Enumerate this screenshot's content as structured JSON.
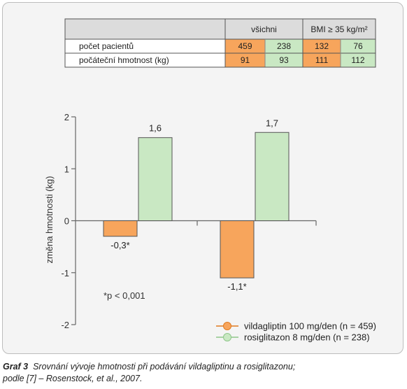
{
  "colors": {
    "orange": "#f7a55c",
    "green": "#c9e8c3",
    "green_dark": "#8fc78a",
    "orange_dark": "#e07a1f",
    "table_header": "#dcdcdc",
    "panel": "#f4f4f4"
  },
  "table": {
    "headers": [
      "všichni",
      "BMI ≥ 35 kg/m²"
    ],
    "rows": [
      {
        "label": "počet pacientů",
        "values": [
          "459",
          "238",
          "132",
          "76"
        ]
      },
      {
        "label": "počáteční hmotnost (kg)",
        "values": [
          "91",
          "93",
          "111",
          "112"
        ]
      }
    ]
  },
  "chart_data": {
    "type": "bar",
    "ylabel": "změna hmotnosti (kg)",
    "ylim": [
      -2,
      2
    ],
    "yticks": [
      "2",
      "1",
      "0",
      "-1",
      "-2"
    ],
    "groups": [
      "všichni",
      "BMI ≥ 35 kg/m²"
    ],
    "series": [
      {
        "name": "vildagliptin 100 mg/den (n = 459)",
        "values": [
          -0.3,
          -1.1
        ],
        "labels": [
          "-0,3*",
          "-1,1*"
        ],
        "color": "#f7a55c"
      },
      {
        "name": "rosiglitazon 8 mg/den (n = 238)",
        "values": [
          1.6,
          1.7
        ],
        "labels": [
          "1,6",
          "1,7"
        ],
        "color": "#c9e8c3"
      }
    ],
    "annotation": "*p < 0,001",
    "legend_position": "bottom-right",
    "grid": false
  },
  "caption": {
    "lead": "Graf 3",
    "text": "Srovnání vývoje hmotnosti při podávání vildagliptinu a rosiglitazonu;",
    "line2": "podle [7] – Rosenstock, et al., 2007."
  }
}
